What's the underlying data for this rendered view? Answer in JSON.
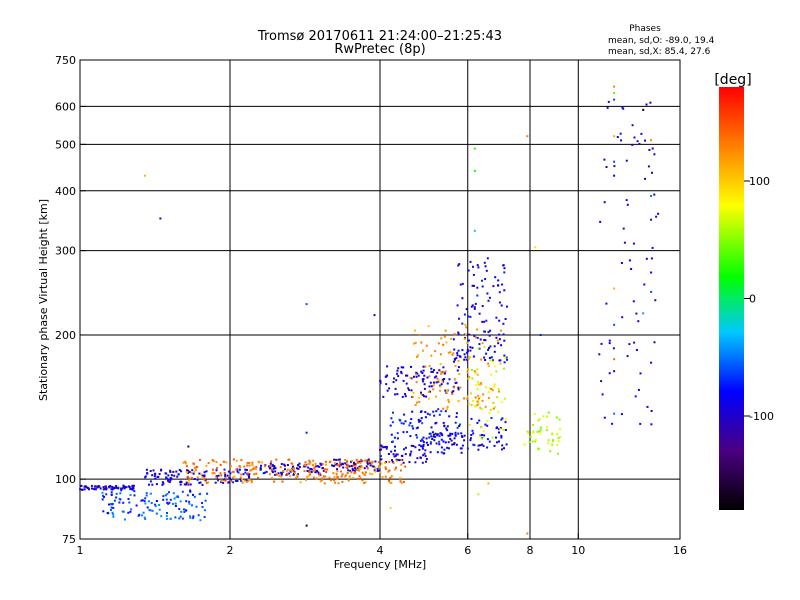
{
  "header": {
    "title_line1": "Tromsø 20170611 21:24:00–21:25:43",
    "title_line2": "RwPretec (8p)",
    "phases_title": "Phases",
    "phases_o": "mean, sd,O: -89.0, 19.4",
    "phases_x": "mean, sd,X:  85.4, 27.6"
  },
  "colorbar": {
    "label": "[deg]",
    "min": -180,
    "max": 180,
    "ticks": [
      {
        "value": 100,
        "label": "100"
      },
      {
        "value": 0,
        "label": "0"
      },
      {
        "value": -100,
        "label": "-100"
      }
    ],
    "colors": [
      "#000000",
      "#4b0082",
      "#0000ff",
      "#00c8ff",
      "#00ff00",
      "#ffff00",
      "#ff8000",
      "#ff0000"
    ]
  },
  "chart_data": {
    "type": "scatter",
    "title": "Tromsø 20170611 21:24:00–21:25:43",
    "subtitle": "RwPretec (8p)",
    "xlabel": "Frequency [MHz]",
    "ylabel": "Stationary phase Virtual Height [km]",
    "x_scale": "log",
    "y_scale": "log",
    "xlim": [
      1,
      16
    ],
    "ylim": [
      75,
      750
    ],
    "xticks": [
      {
        "v": 1,
        "label": "1"
      },
      {
        "v": 2,
        "label": "2"
      },
      {
        "v": 4,
        "label": "4"
      },
      {
        "v": 6,
        "label": "6"
      },
      {
        "v": 8,
        "label": "8"
      },
      {
        "v": 10,
        "label": "10"
      },
      {
        "v": 16,
        "label": "16"
      }
    ],
    "yticks": [
      {
        "v": 75,
        "label": "75"
      },
      {
        "v": 100,
        "label": "100"
      },
      {
        "v": 200,
        "label": "200"
      },
      {
        "v": 300,
        "label": "300"
      },
      {
        "v": 400,
        "label": "400"
      },
      {
        "v": 500,
        "label": "500"
      },
      {
        "v": 600,
        "label": "600"
      },
      {
        "v": 750,
        "label": "750"
      }
    ],
    "xgrid": [
      2,
      4,
      6,
      8,
      10
    ],
    "ygrid": [
      100,
      200,
      300,
      400,
      500,
      600
    ],
    "point_groups": [
      {
        "x": [
          1.0,
          1.3
        ],
        "y": [
          95,
          97
        ],
        "phase": -95
      },
      {
        "x": [
          1.35,
          1.8
        ],
        "y": [
          97,
          105
        ],
        "phase": -90
      },
      {
        "x": [
          1.85,
          2.2
        ],
        "y": [
          98,
          105
        ],
        "phase": -85
      },
      {
        "x": [
          2.3,
          3.1
        ],
        "y": [
          102,
          108
        ],
        "phase": -92
      },
      {
        "x": [
          3.2,
          4.0
        ],
        "y": [
          104,
          110
        ],
        "phase": -100
      },
      {
        "x": [
          4.0,
          5.0
        ],
        "y": [
          108,
          118
        ],
        "phase": -95
      },
      {
        "x": [
          5.0,
          6.0
        ],
        "y": [
          113,
          125
        ],
        "phase": -88
      },
      {
        "x": [
          6.0,
          7.2
        ],
        "y": [
          115,
          135
        ],
        "phase": -85
      },
      {
        "x": [
          4.2,
          5.8
        ],
        "y": [
          118,
          140
        ],
        "phase": -80
      },
      {
        "x": [
          4.0,
          5.8
        ],
        "y": [
          148,
          172
        ],
        "phase": -95
      },
      {
        "x": [
          5.6,
          7.2
        ],
        "y": [
          175,
          205
        ],
        "phase": -92
      },
      {
        "x": [
          5.7,
          7.2
        ],
        "y": [
          210,
          290
        ],
        "phase": -88
      },
      {
        "x": [
          7.8,
          9.2
        ],
        "y": [
          113,
          138
        ],
        "phase": 60
      },
      {
        "x": [
          6.0,
          7.2
        ],
        "y": [
          120,
          190
        ],
        "phase": 70
      },
      {
        "x": [
          1.1,
          1.8
        ],
        "y": [
          82,
          95
        ],
        "phase": -60
      },
      {
        "x": [
          1.6,
          4.5
        ],
        "y": [
          98,
          110
        ],
        "phase": 130
      },
      {
        "x": [
          4.5,
          7.0
        ],
        "y": [
          140,
          210
        ],
        "phase": 120
      },
      {
        "x": [
          11.0,
          14.5
        ],
        "y": [
          130,
          650
        ],
        "phase": -95
      }
    ],
    "points": [
      {
        "x": 1.35,
        "y": 430,
        "phase": 110
      },
      {
        "x": 1.45,
        "y": 350,
        "phase": -100
      },
      {
        "x": 1.65,
        "y": 117,
        "phase": -150
      },
      {
        "x": 2.85,
        "y": 232,
        "phase": -60
      },
      {
        "x": 2.85,
        "y": 125,
        "phase": -70
      },
      {
        "x": 2.85,
        "y": 80,
        "phase": -160
      },
      {
        "x": 3.9,
        "y": 220,
        "phase": -100
      },
      {
        "x": 4.2,
        "y": 87,
        "phase": 60
      },
      {
        "x": 4.8,
        "y": 200,
        "phase": 130
      },
      {
        "x": 6.2,
        "y": 490,
        "phase": 30
      },
      {
        "x": 6.2,
        "y": 440,
        "phase": 20
      },
      {
        "x": 6.2,
        "y": 330,
        "phase": -30
      },
      {
        "x": 6.3,
        "y": 93,
        "phase": 60
      },
      {
        "x": 6.6,
        "y": 98,
        "phase": 110
      },
      {
        "x": 7.9,
        "y": 520,
        "phase": 130
      },
      {
        "x": 7.9,
        "y": 77,
        "phase": 130
      },
      {
        "x": 8.2,
        "y": 305,
        "phase": 90
      },
      {
        "x": 8.4,
        "y": 200,
        "phase": -70
      },
      {
        "x": 11.8,
        "y": 660,
        "phase": 130
      },
      {
        "x": 11.8,
        "y": 640,
        "phase": 40
      },
      {
        "x": 11.8,
        "y": 620,
        "phase": -60
      },
      {
        "x": 11.8,
        "y": 520,
        "phase": 110
      },
      {
        "x": 11.8,
        "y": 460,
        "phase": -60
      },
      {
        "x": 11.8,
        "y": 430,
        "phase": -80
      },
      {
        "x": 11.8,
        "y": 250,
        "phase": 110
      },
      {
        "x": 11.8,
        "y": 210,
        "phase": -60
      },
      {
        "x": 11.8,
        "y": 178,
        "phase": 140
      },
      {
        "x": 11.8,
        "y": 168,
        "phase": -100
      },
      {
        "x": 11.8,
        "y": 137,
        "phase": -50
      },
      {
        "x": 13.5,
        "y": 590,
        "phase": -170
      },
      {
        "x": 14.0,
        "y": 510,
        "phase": 130
      },
      {
        "x": 14.0,
        "y": 390,
        "phase": -50
      },
      {
        "x": 14.0,
        "y": 348,
        "phase": -120
      },
      {
        "x": 14.0,
        "y": 270,
        "phase": -80
      },
      {
        "x": 14.0,
        "y": 246,
        "phase": -60
      },
      {
        "x": 13.5,
        "y": 222,
        "phase": -40
      },
      {
        "x": 14.0,
        "y": 175,
        "phase": -100
      }
    ]
  }
}
